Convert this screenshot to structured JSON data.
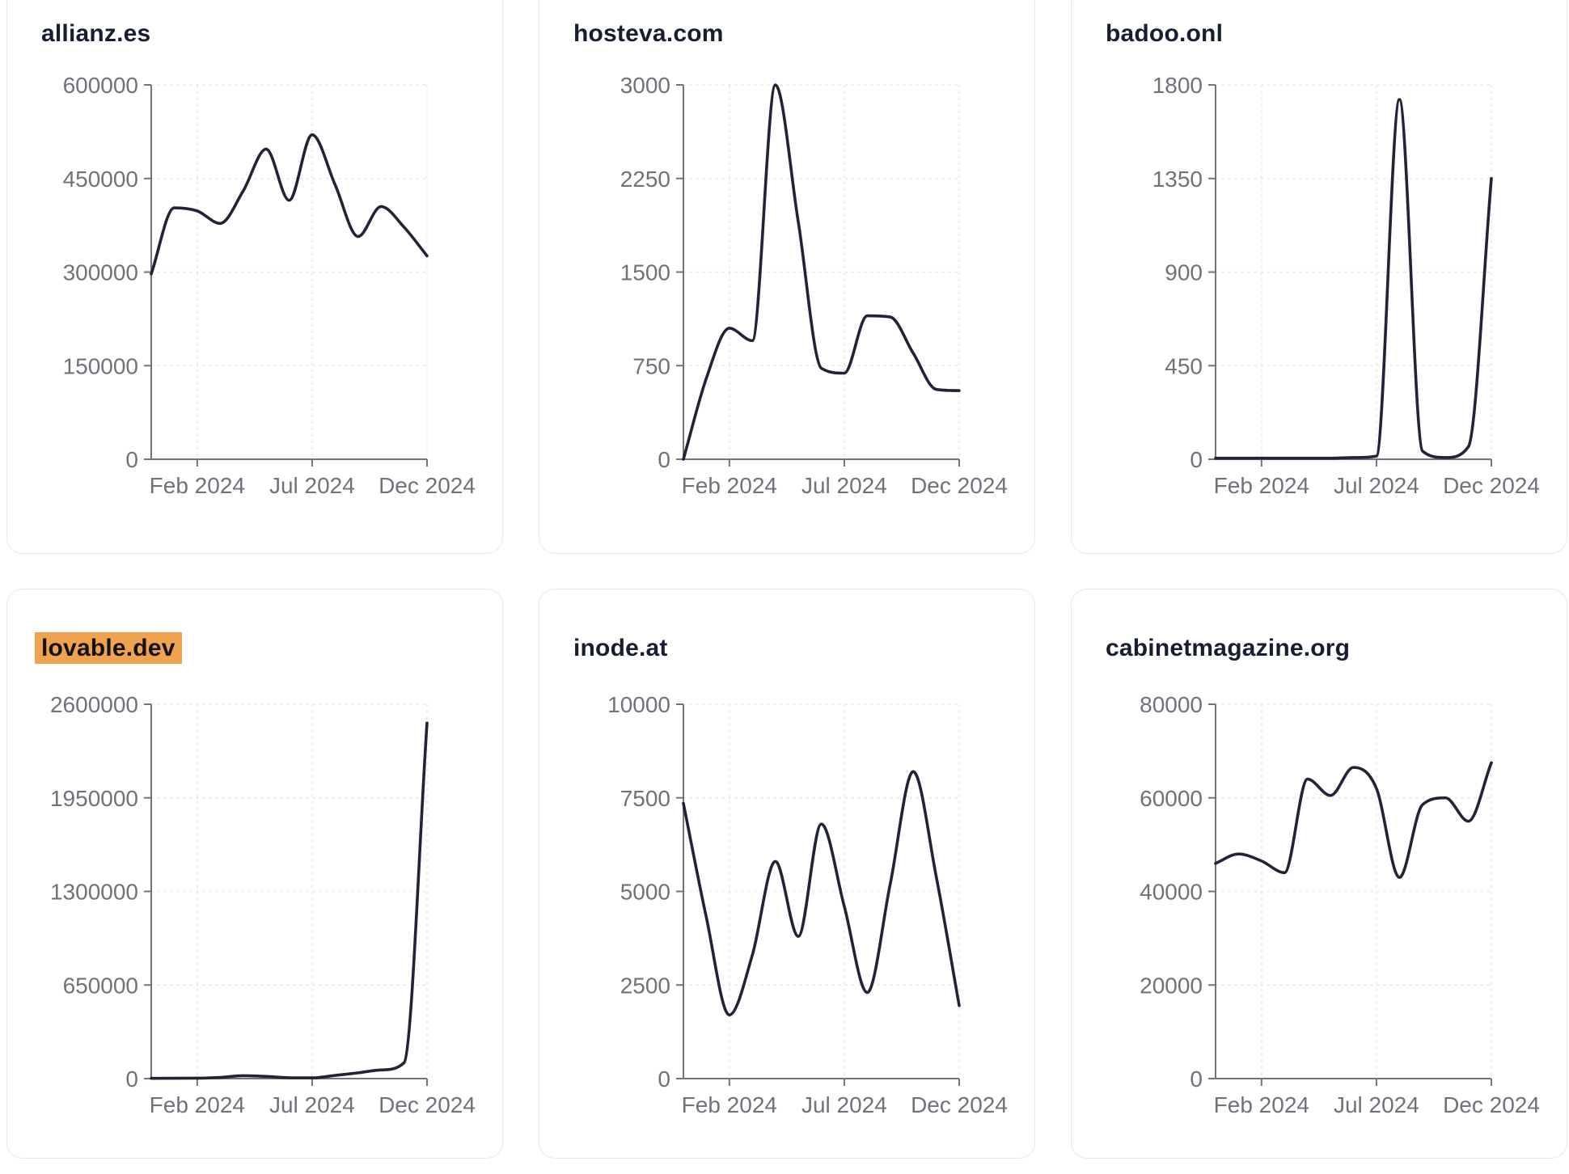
{
  "page": {
    "background": "#ffffff"
  },
  "colors": {
    "series_line": "#1f2438",
    "axis": "#73737b",
    "tick_label": "#71717a",
    "gridline": "#e7e7ea",
    "card_border": "#e7e9f2",
    "title_text": "#171e33",
    "highlight_background": "#f0a24f",
    "highlight_text": "#121212"
  },
  "x_axis": {
    "tick_labels": [
      "Feb 2024",
      "Jul 2024",
      "Dec 2024"
    ],
    "tick_indices": [
      2,
      7,
      12
    ]
  },
  "chart_data": [
    {
      "type": "line",
      "title": "allianz.es",
      "highlighted": false,
      "ylim": [
        0,
        600000
      ],
      "y_ticks": [
        0,
        150000,
        300000,
        450000,
        600000
      ],
      "x_tick_labels": [
        "Feb 2024",
        "Jul 2024",
        "Dec 2024"
      ],
      "x_tick_indices": [
        2,
        7,
        12
      ],
      "values": [
        297000,
        403000,
        398000,
        378000,
        430000,
        497000,
        415000,
        520000,
        440000,
        357000,
        405000,
        372000,
        326000
      ]
    },
    {
      "type": "line",
      "title": "hosteva.com",
      "highlighted": false,
      "ylim": [
        0,
        3000
      ],
      "y_ticks": [
        0,
        750,
        1500,
        2250,
        3000
      ],
      "x_tick_labels": [
        "Feb 2024",
        "Jul 2024",
        "Dec 2024"
      ],
      "x_tick_indices": [
        2,
        7,
        12
      ],
      "values": [
        0,
        650,
        1050,
        950,
        3000,
        1900,
        730,
        690,
        1150,
        1140,
        850,
        560,
        550
      ]
    },
    {
      "type": "line",
      "title": "badoo.onl",
      "highlighted": false,
      "ylim": [
        0,
        1800
      ],
      "y_ticks": [
        0,
        450,
        900,
        1350,
        1800
      ],
      "x_tick_labels": [
        "Feb 2024",
        "Jul 2024",
        "Dec 2024"
      ],
      "x_tick_indices": [
        2,
        7,
        12
      ],
      "values": [
        5,
        5,
        5,
        5,
        5,
        5,
        8,
        15,
        1730,
        40,
        8,
        60,
        1350
      ]
    },
    {
      "type": "line",
      "title": "lovable.dev",
      "highlighted": true,
      "ylim": [
        0,
        2600000
      ],
      "y_ticks": [
        0,
        650000,
        1300000,
        1950000,
        2600000
      ],
      "x_tick_labels": [
        "Feb 2024",
        "Jul 2024",
        "Dec 2024"
      ],
      "x_tick_indices": [
        2,
        7,
        12
      ],
      "values": [
        2000,
        2500,
        3000,
        8000,
        20000,
        15000,
        6000,
        5000,
        22000,
        40000,
        60000,
        110000,
        2470000
      ]
    },
    {
      "type": "line",
      "title": "inode.at",
      "highlighted": false,
      "ylim": [
        0,
        10000
      ],
      "y_ticks": [
        0,
        2500,
        5000,
        7500,
        10000
      ],
      "x_tick_labels": [
        "Feb 2024",
        "Jul 2024",
        "Dec 2024"
      ],
      "x_tick_indices": [
        2,
        7,
        12
      ],
      "values": [
        7350,
        4300,
        1700,
        3300,
        5800,
        3800,
        6800,
        4600,
        2300,
        5200,
        8200,
        5400,
        1950
      ]
    },
    {
      "type": "line",
      "title": "cabinetmagazine.org",
      "highlighted": false,
      "ylim": [
        0,
        80000
      ],
      "y_ticks": [
        0,
        20000,
        40000,
        60000,
        80000
      ],
      "x_tick_labels": [
        "Feb 2024",
        "Jul 2024",
        "Dec 2024"
      ],
      "x_tick_indices": [
        2,
        7,
        12
      ],
      "values": [
        46000,
        48000,
        46500,
        44000,
        64000,
        60500,
        66500,
        62000,
        43000,
        58500,
        60000,
        55000,
        67500
      ]
    }
  ]
}
